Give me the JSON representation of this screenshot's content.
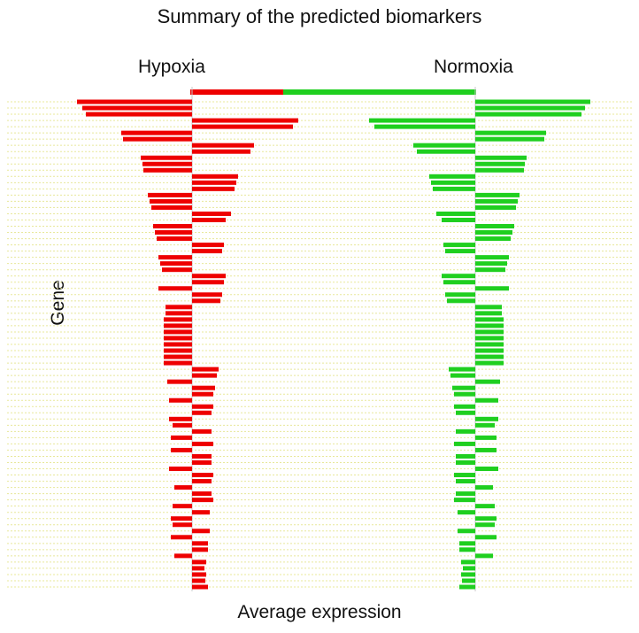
{
  "colors": {
    "hypoxia": "#ee0000",
    "normoxia": "#1fcf1f",
    "grid": "#e8e89a"
  },
  "chart_data": {
    "type": "bar",
    "title": "Summary of the predicted biomarkers",
    "xlabel": "Average expression",
    "ylabel": "Gene",
    "grid": true,
    "panels": [
      {
        "name": "Hypoxia",
        "color": "#ee0000",
        "values": [
          -1.3,
          -1.24,
          -1.2,
          1.2,
          1.14,
          -0.8,
          -0.78,
          0.7,
          0.66,
          -0.58,
          -0.56,
          -0.55,
          0.52,
          0.5,
          0.48,
          -0.5,
          -0.48,
          -0.46,
          0.44,
          0.38,
          -0.44,
          -0.42,
          -0.4,
          0.36,
          0.34,
          -0.38,
          -0.36,
          -0.34,
          0.38,
          0.36,
          -0.38,
          0.34,
          0.32,
          -0.3,
          -0.3,
          -0.32,
          -0.32,
          -0.32,
          -0.32,
          -0.32,
          -0.32,
          -0.32,
          -0.32,
          0.3,
          0.28,
          -0.28,
          0.26,
          0.24,
          -0.26,
          0.24,
          0.22,
          -0.26,
          -0.22,
          0.22,
          -0.24,
          0.24,
          -0.24,
          0.22,
          0.22,
          -0.26,
          0.24,
          0.22,
          -0.2,
          0.22,
          0.24,
          -0.22,
          0.2,
          -0.24,
          -0.22,
          0.2,
          -0.24,
          0.18,
          0.18,
          -0.2,
          0.16,
          0.14,
          0.16,
          0.15,
          0.18
        ]
      },
      {
        "name": "Normoxia",
        "color": "#1fcf1f",
        "values": [
          1.3,
          1.24,
          1.2,
          -1.2,
          -1.14,
          0.8,
          0.78,
          -0.7,
          -0.66,
          0.58,
          0.56,
          0.55,
          -0.52,
          -0.5,
          -0.48,
          0.5,
          0.48,
          0.46,
          -0.44,
          -0.38,
          0.44,
          0.42,
          0.4,
          -0.36,
          -0.34,
          0.38,
          0.36,
          0.34,
          -0.38,
          -0.36,
          0.38,
          -0.34,
          -0.32,
          0.3,
          0.3,
          0.32,
          0.32,
          0.32,
          0.32,
          0.32,
          0.32,
          0.32,
          0.32,
          -0.3,
          -0.28,
          0.28,
          -0.26,
          -0.24,
          0.26,
          -0.24,
          -0.22,
          0.26,
          0.22,
          -0.22,
          0.24,
          -0.24,
          0.24,
          -0.22,
          -0.22,
          0.26,
          -0.24,
          -0.22,
          0.2,
          -0.22,
          -0.24,
          0.22,
          -0.2,
          0.24,
          0.22,
          -0.2,
          0.24,
          -0.18,
          -0.18,
          0.2,
          -0.16,
          -0.14,
          -0.16,
          -0.15,
          -0.18
        ]
      }
    ]
  }
}
